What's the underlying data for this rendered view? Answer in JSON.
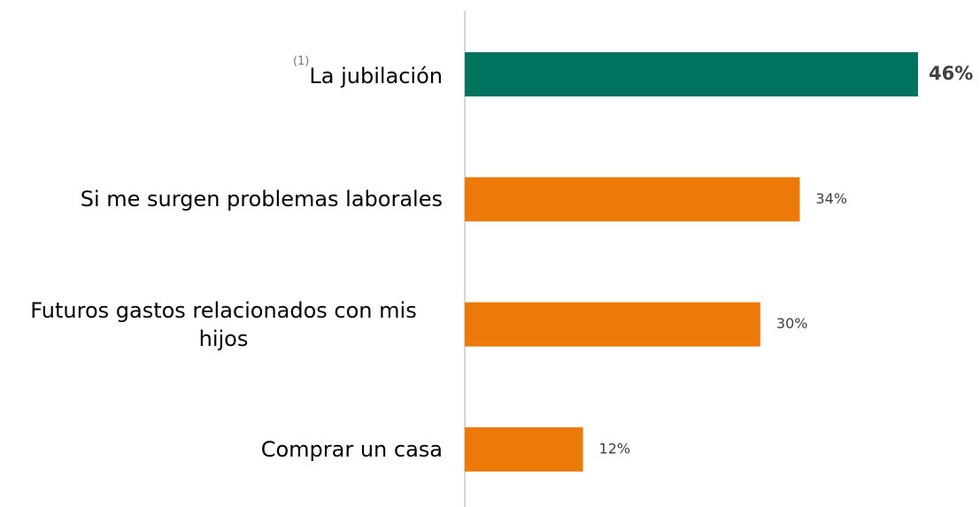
{
  "chart_data": {
    "type": "bar",
    "orientation": "horizontal",
    "categories": [
      "La jubilación",
      "Si me surgen problemas laborales",
      "Futuros gastos relacionados con mis hijos",
      "Comprar un casa"
    ],
    "category_notes": [
      "(1)",
      null,
      null,
      null
    ],
    "values": [
      46,
      34,
      30,
      12
    ],
    "value_labels": [
      "46%",
      "34%",
      "30%",
      "12%"
    ],
    "colors": [
      "#00735f",
      "#ec7a08",
      "#ec7a08",
      "#ec7a08"
    ],
    "highlight": 0
  }
}
